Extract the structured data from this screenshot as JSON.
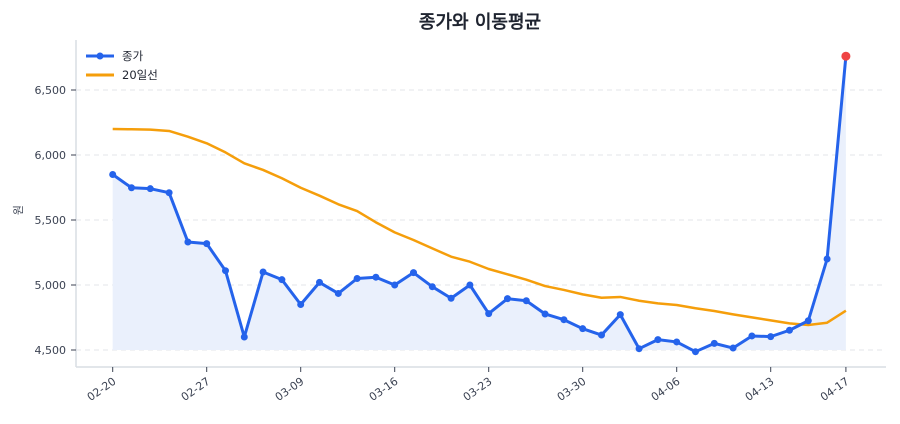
{
  "title": "종가와 이동평균",
  "legend": {
    "items": [
      {
        "label": "종가",
        "color": "#2563eb",
        "marker": "circle"
      },
      {
        "label": "20일선",
        "color": "#f59e0b",
        "marker": "none"
      }
    ]
  },
  "colors": {
    "close": "#2563eb",
    "ma": "#f59e0b",
    "fill": "#eaf0fc",
    "last_point": "#ef4444",
    "grid": "#e3e6ea",
    "spine": "#d9dde3"
  },
  "chart_data": {
    "type": "line",
    "title": "종가와 이동평균",
    "xlabel": "",
    "ylabel": "원",
    "ylim": [
      4400,
      6900
    ],
    "yticks": [
      4500,
      5000,
      5500,
      6000,
      6500
    ],
    "ytick_labels": [
      "4,500",
      "5,000",
      "5,500",
      "6,000",
      "6,500"
    ],
    "xtick_labels": [
      "02-20",
      "02-27",
      "03-09",
      "03-16",
      "03-23",
      "03-30",
      "04-06",
      "04-13",
      "04-17"
    ],
    "xtick_indices": [
      0,
      5,
      10,
      15,
      20,
      25,
      30,
      35,
      39
    ],
    "grid": "horizontal dashed",
    "legend_position": "upper left",
    "series": [
      {
        "name": "종가",
        "values": [
          5850,
          5748,
          5741,
          5710,
          5331,
          5318,
          5110,
          4600,
          5100,
          5041,
          4850,
          5020,
          4935,
          5050,
          5060,
          5000,
          5095,
          4987,
          4898,
          5000,
          4780,
          4895,
          4879,
          4777,
          4733,
          4664,
          4615,
          4772,
          4510,
          4580,
          4562,
          4487,
          4551,
          4515,
          4608,
          4603,
          4652,
          4725,
          5200,
          6760
        ],
        "fill_to": 4500,
        "last_point_highlight": true
      },
      {
        "name": "20일선",
        "values": [
          6200,
          6198,
          6195,
          6185,
          6141,
          6090,
          6020,
          5936,
          5885,
          5821,
          5748,
          5687,
          5621,
          5569,
          5482,
          5405,
          5346,
          5282,
          5218,
          5179,
          5123,
          5082,
          5041,
          4992,
          4962,
          4928,
          4902,
          4908,
          4879,
          4859,
          4846,
          4821,
          4800,
          4774,
          4751,
          4728,
          4705,
          4692,
          4710,
          4802
        ]
      }
    ]
  }
}
